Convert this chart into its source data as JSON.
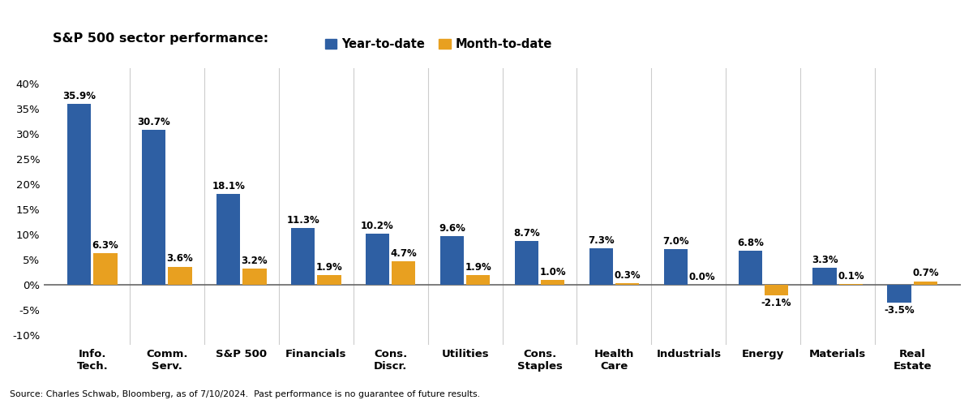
{
  "title": "S&P 500 sector performance:",
  "categories": [
    "Info.\nTech.",
    "Comm.\nServ.",
    "S&P 500",
    "Financials",
    "Cons.\nDiscr.",
    "Utilities",
    "Cons.\nStaples",
    "Health\nCare",
    "Industrials",
    "Energy",
    "Materials",
    "Real\nEstate"
  ],
  "ytd": [
    35.9,
    30.7,
    18.1,
    11.3,
    10.2,
    9.6,
    8.7,
    7.3,
    7.0,
    6.8,
    3.3,
    -3.5
  ],
  "mtd": [
    6.3,
    3.6,
    3.2,
    1.9,
    4.7,
    1.9,
    1.0,
    0.3,
    0.0,
    -2.1,
    0.1,
    0.7
  ],
  "ytd_color": "#2e5fa3",
  "mtd_color": "#e8a020",
  "background_color": "#ffffff",
  "grid_color": "#cccccc",
  "ylim": [
    -12,
    43
  ],
  "yticks": [
    -10,
    -5,
    0,
    5,
    10,
    15,
    20,
    25,
    30,
    35,
    40
  ],
  "ytick_labels": [
    "-10%",
    "-5%",
    "0%",
    "5%",
    "10%",
    "15%",
    "20%",
    "25%",
    "30%",
    "35%",
    "40%"
  ],
  "source_text": "Source: Charles Schwab, Bloomberg, as of 7/10/2024.  Past performance is no guarantee of future results.",
  "legend_ytd": "Year-to-date",
  "legend_mtd": "Month-to-date"
}
